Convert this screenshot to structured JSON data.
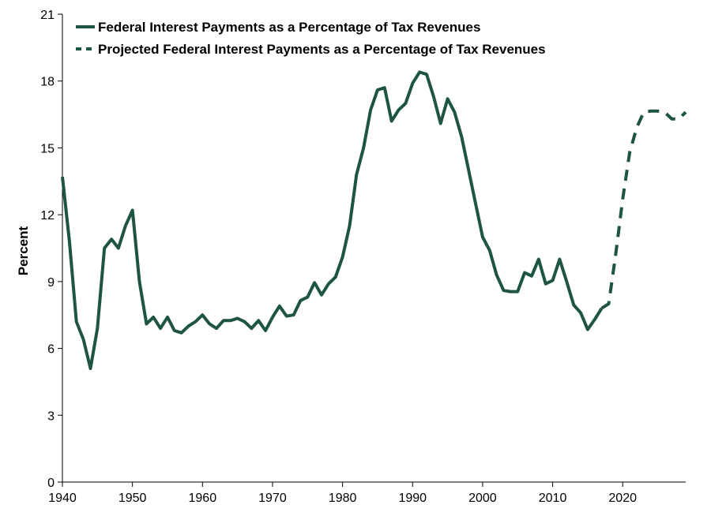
{
  "chart_data": {
    "type": "line",
    "title": "",
    "xlabel": "",
    "ylabel": "Percent",
    "xlim": [
      1940,
      2029
    ],
    "ylim": [
      0,
      21
    ],
    "yticks": [
      0,
      3,
      6,
      9,
      12,
      15,
      18,
      21
    ],
    "xticks": [
      1940,
      1950,
      1960,
      1970,
      1980,
      1990,
      2000,
      2010,
      2020
    ],
    "grid": false,
    "legend_position": "top-left",
    "line_color": "#1e5443",
    "series": [
      {
        "name": "Federal Interest Payments as a Percentage of Tax Revenues",
        "style": "solid",
        "x": [
          1940,
          1941,
          1942,
          1943,
          1944,
          1945,
          1946,
          1947,
          1948,
          1949,
          1950,
          1951,
          1952,
          1953,
          1954,
          1955,
          1956,
          1957,
          1958,
          1959,
          1960,
          1961,
          1962,
          1963,
          1964,
          1965,
          1966,
          1967,
          1968,
          1969,
          1970,
          1971,
          1972,
          1973,
          1974,
          1975,
          1976,
          1977,
          1978,
          1979,
          1980,
          1981,
          1982,
          1983,
          1984,
          1985,
          1986,
          1987,
          1988,
          1989,
          1990,
          1991,
          1992,
          1993,
          1994,
          1995,
          1996,
          1997,
          1998,
          1999,
          2000,
          2001,
          2002,
          2003,
          2004,
          2005,
          2006,
          2007,
          2008,
          2009,
          2010,
          2011,
          2012,
          2013,
          2014,
          2015,
          2016,
          2017
        ],
        "y": [
          13.7,
          10.8,
          7.2,
          6.4,
          5.1,
          6.9,
          10.5,
          10.9,
          10.5,
          11.5,
          12.2,
          9.0,
          7.1,
          7.4,
          6.9,
          7.4,
          6.8,
          6.7,
          7.0,
          7.2,
          7.5,
          7.1,
          6.9,
          7.25,
          7.25,
          7.35,
          7.2,
          6.9,
          7.25,
          6.8,
          7.4,
          7.9,
          7.45,
          7.5,
          8.15,
          8.3,
          8.95,
          8.4,
          8.9,
          9.2,
          10.1,
          11.5,
          13.8,
          15.0,
          16.7,
          17.6,
          17.7,
          16.2,
          16.7,
          17.0,
          17.9,
          18.4,
          18.3,
          17.3,
          16.1,
          17.2,
          16.6,
          15.5,
          14.0,
          12.5,
          11.0,
          10.4,
          9.3,
          8.6,
          8.55,
          8.55,
          9.4,
          9.25,
          10.0,
          8.9,
          9.05,
          10.0,
          9.0,
          7.95,
          7.6,
          6.85,
          7.3,
          7.8
        ]
      },
      {
        "name": "Projected Federal Interest Payments as a Percentage of Tax Revenues",
        "style": "dashed",
        "x": [
          2017,
          2018,
          2019,
          2020,
          2021,
          2022,
          2023,
          2024,
          2025,
          2026,
          2027,
          2028,
          2029
        ],
        "y": [
          7.8,
          8.0,
          10.2,
          12.7,
          14.8,
          15.9,
          16.6,
          16.65,
          16.65,
          16.6,
          16.3,
          16.3,
          16.6
        ]
      }
    ]
  }
}
